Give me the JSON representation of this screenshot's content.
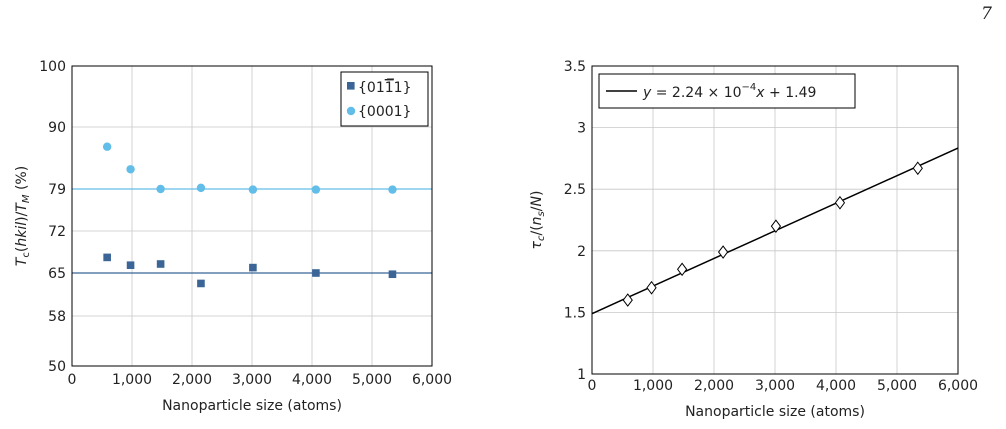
{
  "page_number": "7",
  "chart_data": [
    {
      "type": "scatter",
      "xlabel": "Nanoparticle size (atoms)",
      "ylabel": "T_c(hkil)/T_M (%)",
      "xlim": [
        0,
        6000
      ],
      "ylim": [
        50,
        100
      ],
      "xticks": [
        "0",
        "1,000",
        "2,000",
        "3,000",
        "4,000",
        "5,000",
        "6,000"
      ],
      "xtick_values": [
        0,
        1000,
        2000,
        3000,
        4000,
        5000,
        6000
      ],
      "yticks": [
        "50",
        "58",
        "65",
        "72",
        "79",
        "90",
        "100"
      ],
      "ytick_values": [
        50,
        58,
        65,
        72,
        79,
        90,
        100
      ],
      "grid": true,
      "legend_position": "top-right",
      "series": [
        {
          "name": "{0111}",
          "name_overbar_digit": "1",
          "marker": "square",
          "color": "#3a6596",
          "x": [
            586,
            976,
            1477,
            2149,
            3015,
            4065,
            5341
          ],
          "y": [
            67.6,
            66.3,
            66.5,
            63.3,
            65.9,
            65.0,
            64.8
          ],
          "reference_line": 65
        },
        {
          "name": "{0001}",
          "marker": "circle",
          "color": "#62bde8",
          "x": [
            586,
            976,
            1477,
            2149,
            3015,
            4065,
            5341
          ],
          "y": [
            86.5,
            82.5,
            79.0,
            79.2,
            78.9,
            78.9,
            78.9
          ],
          "reference_line": 79
        }
      ]
    },
    {
      "type": "scatter",
      "xlabel": "Nanoparticle size (atoms)",
      "ylabel": "τ_c/(n_s/N)",
      "xlim": [
        0,
        6000
      ],
      "ylim": [
        1,
        3.5
      ],
      "xticks": [
        "0",
        "1,000",
        "2,000",
        "3,000",
        "4,000",
        "5,000",
        "6,000"
      ],
      "xtick_values": [
        0,
        1000,
        2000,
        3000,
        4000,
        5000,
        6000
      ],
      "yticks": [
        "1",
        "1.5",
        "2",
        "2.5",
        "3",
        "3.5"
      ],
      "ytick_values": [
        1,
        1.5,
        2,
        2.5,
        3,
        3.5
      ],
      "grid": true,
      "legend_position": "top-left",
      "legend_label": "y = 2.24 × 10⁻⁴x + 1.49",
      "fit": {
        "slope": 0.000224,
        "intercept": 1.49
      },
      "series": [
        {
          "marker": "diamond",
          "color": "#000000",
          "x": [
            586,
            976,
            1477,
            2149,
            3015,
            4065,
            5341
          ],
          "y": [
            1.6,
            1.7,
            1.85,
            1.99,
            2.2,
            2.39,
            2.67
          ]
        }
      ]
    }
  ]
}
